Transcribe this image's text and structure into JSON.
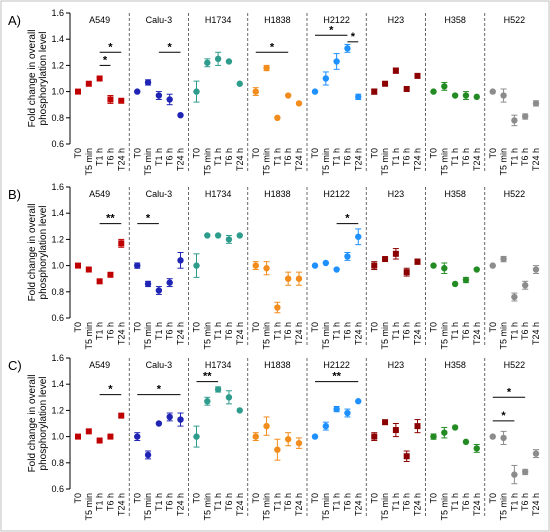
{
  "figure": {
    "border_color": "#bfbfbf",
    "ylabel_line1": "Fold change in overall",
    "ylabel_line2": "phosphorylation level",
    "yticks": [
      "0.6",
      "0.8",
      "1.0",
      "1.2",
      "1.4",
      "1.6"
    ],
    "xticks": [
      "T0",
      "T5 min",
      "T1 h",
      "T6 h",
      "T24 h"
    ],
    "groups": [
      "A549",
      "Calu-3",
      "H1734",
      "H1838",
      "H2122",
      "H23",
      "H358",
      "H522"
    ],
    "group_colors": [
      "#c00000",
      "#1f24b5",
      "#2e9c8c",
      "#f28c1c",
      "#1e90ff",
      "#8b0000",
      "#228b22",
      "#8c8c8c"
    ]
  },
  "chart_data": [
    {
      "type": "scatter",
      "panel_label": "A)",
      "ylim": [
        0.6,
        1.6
      ],
      "ylabel": "Fold change in overall phosphorylation level",
      "x": [
        "T0",
        "T5 min",
        "T1 h",
        "T6 h",
        "T24 h"
      ],
      "series": [
        {
          "name": "A549",
          "values": [
            1.0,
            1.06,
            1.1,
            0.94,
            0.93
          ],
          "errors": [
            0,
            0,
            0,
            0.03,
            0
          ]
        },
        {
          "name": "Calu-3",
          "values": [
            1.0,
            1.07,
            0.97,
            0.94,
            0.82
          ],
          "errors": [
            0,
            0.02,
            0.03,
            0.04,
            0
          ]
        },
        {
          "name": "H1734",
          "values": [
            1.0,
            1.22,
            1.25,
            1.23,
            1.06
          ],
          "errors": [
            0.08,
            0.03,
            0.05,
            0,
            0
          ]
        },
        {
          "name": "H1838",
          "values": [
            1.0,
            1.18,
            0.8,
            0.97,
            0.91
          ],
          "errors": [
            0.03,
            0.02,
            0,
            0,
            0
          ]
        },
        {
          "name": "H2122",
          "values": [
            1.0,
            1.1,
            1.23,
            1.33,
            0.96
          ],
          "errors": [
            0,
            0.05,
            0.06,
            0.03,
            0.02
          ]
        },
        {
          "name": "H23",
          "values": [
            1.0,
            1.06,
            1.16,
            1.02,
            1.12
          ],
          "errors": [
            0.02,
            0,
            0.02,
            0,
            0
          ]
        },
        {
          "name": "H358",
          "values": [
            1.0,
            1.04,
            0.97,
            0.97,
            0.96
          ],
          "errors": [
            0,
            0.03,
            0,
            0.03,
            0
          ]
        },
        {
          "name": "H522",
          "values": [
            1.0,
            0.97,
            0.78,
            0.81,
            0.91
          ],
          "errors": [
            0,
            0.05,
            0.04,
            0.02,
            0.02
          ]
        }
      ],
      "significance": [
        {
          "group": "A549",
          "from": "T1 h",
          "to": "T24 h",
          "y": 1.3,
          "label": "*"
        },
        {
          "group": "A549",
          "from": "T1 h",
          "to": "T6 h",
          "y": 1.2,
          "label": "*"
        },
        {
          "group": "Calu-3",
          "from": "T1 h",
          "to": "T24 h",
          "y": 1.3,
          "label": "*"
        },
        {
          "group": "H1838",
          "from": "T0",
          "to": "T6 h",
          "y": 1.3,
          "label": "*"
        },
        {
          "group": "H2122",
          "from": "T0",
          "to": "T6 h",
          "y": 1.43,
          "label": "*"
        },
        {
          "group": "H2122",
          "from": "T6 h",
          "to": "T24 h",
          "y": 1.38,
          "label": "*"
        }
      ]
    },
    {
      "type": "scatter",
      "panel_label": "B)",
      "ylim": [
        0.6,
        1.6
      ],
      "ylabel": "Fold change in overall phosphorylation level",
      "x": [
        "T0",
        "T5 min",
        "T1 h",
        "T6 h",
        "T24 h"
      ],
      "series": [
        {
          "name": "A549",
          "values": [
            1.0,
            0.97,
            0.88,
            0.93,
            1.17
          ],
          "errors": [
            0,
            0,
            0,
            0,
            0.03
          ]
        },
        {
          "name": "Calu-3",
          "values": [
            1.0,
            0.86,
            0.81,
            0.87,
            1.04
          ],
          "errors": [
            0.02,
            0.02,
            0.03,
            0.03,
            0.06
          ]
        },
        {
          "name": "H1734",
          "values": [
            1.0,
            1.23,
            1.23,
            1.2,
            1.23
          ],
          "errors": [
            0.09,
            0,
            0,
            0.03,
            0
          ]
        },
        {
          "name": "H1838",
          "values": [
            1.0,
            0.98,
            0.68,
            0.9,
            0.9
          ],
          "errors": [
            0.03,
            0.05,
            0.04,
            0.05,
            0.05
          ]
        },
        {
          "name": "H2122",
          "values": [
            1.0,
            1.02,
            0.97,
            1.07,
            1.22
          ],
          "errors": [
            0,
            0,
            0,
            0.03,
            0.06
          ]
        },
        {
          "name": "H23",
          "values": [
            1.0,
            1.05,
            1.09,
            0.95,
            1.03
          ],
          "errors": [
            0.03,
            0,
            0.04,
            0.03,
            0.02
          ]
        },
        {
          "name": "H358",
          "values": [
            1.0,
            0.98,
            0.86,
            0.89,
            0.97
          ],
          "errors": [
            0,
            0.04,
            0,
            0.02,
            0
          ]
        },
        {
          "name": "H522",
          "values": [
            1.0,
            1.05,
            0.76,
            0.85,
            0.97
          ],
          "errors": [
            0,
            0.02,
            0.03,
            0.03,
            0.03
          ]
        }
      ],
      "significance": [
        {
          "group": "A549",
          "from": "T1 h",
          "to": "T24 h",
          "y": 1.32,
          "label": "**"
        },
        {
          "group": "Calu-3",
          "from": "T0",
          "to": "T1 h",
          "y": 1.32,
          "label": "*"
        },
        {
          "group": "H2122",
          "from": "T1 h",
          "to": "T24 h",
          "y": 1.32,
          "label": "*"
        }
      ]
    },
    {
      "type": "scatter",
      "panel_label": "C)",
      "ylim": [
        0.6,
        1.6
      ],
      "ylabel": "Fold change in overall phosphorylation level",
      "x": [
        "T0",
        "T5 min",
        "T1 h",
        "T6 h",
        "T24 h"
      ],
      "series": [
        {
          "name": "A549",
          "values": [
            1.0,
            1.04,
            0.97,
            1.0,
            1.16
          ],
          "errors": [
            0,
            0,
            0,
            0,
            0
          ]
        },
        {
          "name": "Calu-3",
          "values": [
            1.0,
            0.86,
            1.1,
            1.15,
            1.13
          ],
          "errors": [
            0.03,
            0.03,
            0,
            0.03,
            0.05
          ]
        },
        {
          "name": "H1734",
          "values": [
            1.0,
            1.27,
            1.36,
            1.3,
            1.2
          ],
          "errors": [
            0.08,
            0.03,
            0.02,
            0.05,
            0
          ]
        },
        {
          "name": "H1838",
          "values": [
            1.0,
            1.08,
            0.9,
            0.98,
            0.95
          ],
          "errors": [
            0.03,
            0.07,
            0.08,
            0.05,
            0.04
          ]
        },
        {
          "name": "H2122",
          "values": [
            1.0,
            1.08,
            1.21,
            1.18,
            1.27
          ],
          "errors": [
            0,
            0.03,
            0.02,
            0.03,
            0
          ]
        },
        {
          "name": "H23",
          "values": [
            1.0,
            1.11,
            1.05,
            0.85,
            1.08
          ],
          "errors": [
            0.03,
            0,
            0.05,
            0.04,
            0.05
          ]
        },
        {
          "name": "H358",
          "values": [
            1.0,
            1.03,
            1.07,
            0.96,
            0.91
          ],
          "errors": [
            0.02,
            0.04,
            0,
            0,
            0.03
          ]
        },
        {
          "name": "H522",
          "values": [
            1.0,
            0.99,
            0.71,
            0.73,
            0.87
          ],
          "errors": [
            0,
            0.05,
            0.07,
            0.02,
            0.03
          ]
        }
      ],
      "significance": [
        {
          "group": "A549",
          "from": "T1 h",
          "to": "T24 h",
          "y": 1.32,
          "label": "*"
        },
        {
          "group": "Calu-3",
          "from": "T0",
          "to": "T24 h",
          "y": 1.32,
          "label": "*"
        },
        {
          "group": "H1734",
          "from": "T0",
          "to": "T1 h",
          "y": 1.42,
          "label": "**"
        },
        {
          "group": "H2122",
          "from": "T0",
          "to": "T24 h",
          "y": 1.42,
          "label": "**"
        },
        {
          "group": "H522",
          "from": "T0",
          "to": "T6 h",
          "y": 1.3,
          "label": "*"
        },
        {
          "group": "H522",
          "from": "T0",
          "to": "T1 h",
          "y": 1.12,
          "label": "*"
        }
      ]
    }
  ]
}
